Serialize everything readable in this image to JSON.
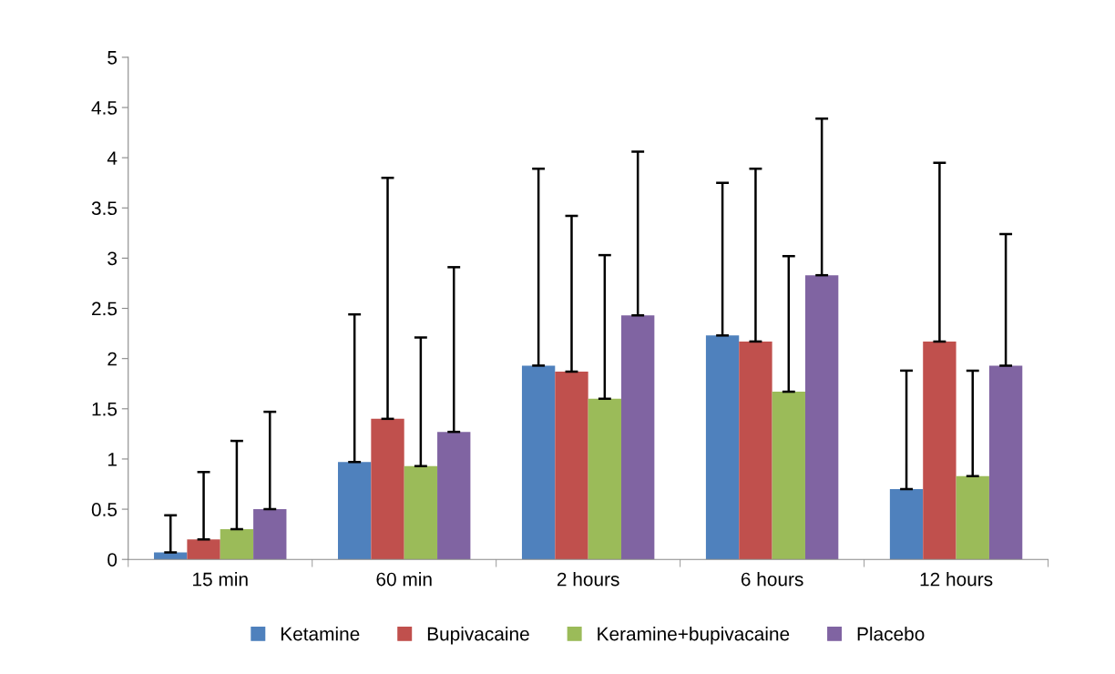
{
  "chart_data": {
    "type": "bar",
    "categories": [
      "15 min",
      "60 min",
      "2 hours",
      "6 hours",
      "12 hours"
    ],
    "ylim": [
      0,
      5
    ],
    "yticks": [
      0,
      0.5,
      1,
      1.5,
      2,
      2.5,
      3,
      3.5,
      4,
      4.5,
      5
    ],
    "grid": false,
    "legend": "bottom",
    "series": [
      {
        "name": "Ketamine",
        "color": "#4f81bd",
        "values": [
          0.07,
          0.97,
          1.93,
          2.23,
          0.7
        ],
        "errors": [
          [
            0.07,
            0.44
          ],
          [
            0.97,
            2.44
          ],
          [
            1.93,
            3.89
          ],
          [
            2.23,
            3.75
          ],
          [
            0.7,
            1.88
          ]
        ]
      },
      {
        "name": "Bupivacaine",
        "color": "#c0504d",
        "values": [
          0.2,
          1.4,
          1.87,
          2.17,
          2.17
        ],
        "errors": [
          [
            0.2,
            0.87
          ],
          [
            1.4,
            3.8
          ],
          [
            1.87,
            3.42
          ],
          [
            2.17,
            3.89
          ],
          [
            2.17,
            3.95
          ]
        ]
      },
      {
        "name": "Keramine+bupivacaine",
        "color": "#9bbb59",
        "values": [
          0.3,
          0.93,
          1.6,
          1.67,
          0.83
        ],
        "errors": [
          [
            0.3,
            1.18
          ],
          [
            0.93,
            2.21
          ],
          [
            1.6,
            3.03
          ],
          [
            1.67,
            3.02
          ],
          [
            0.83,
            1.88
          ]
        ]
      },
      {
        "name": "Placebo",
        "color": "#8064a2",
        "values": [
          0.5,
          1.27,
          2.43,
          2.83,
          1.93
        ],
        "errors": [
          [
            0.5,
            1.47
          ],
          [
            1.27,
            2.91
          ],
          [
            2.43,
            4.06
          ],
          [
            2.83,
            4.39
          ],
          [
            1.93,
            3.24
          ]
        ]
      }
    ]
  }
}
